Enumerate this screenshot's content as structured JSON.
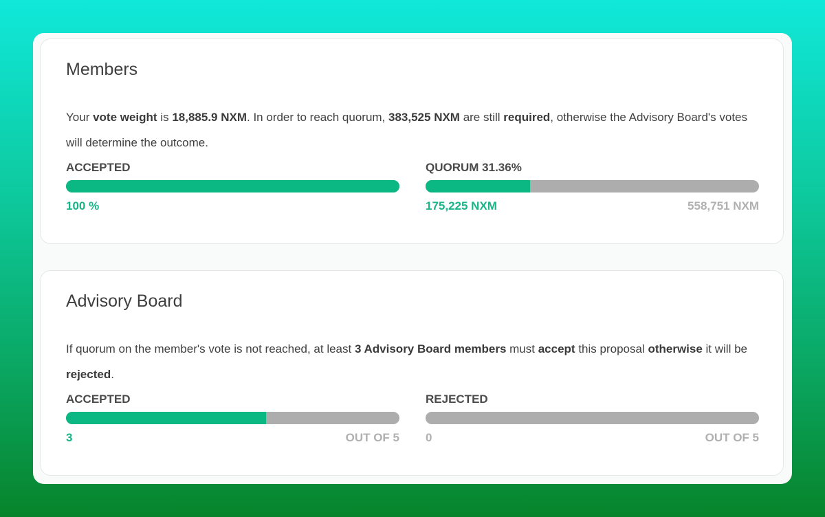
{
  "members": {
    "title": "Members",
    "desc": {
      "t1": "Your ",
      "b1": "vote weight",
      "t2": " is ",
      "b2": "18,885.9 NXM",
      "t3": ". In order to reach quorum, ",
      "b3": "383,525 NXM",
      "t4": " are still ",
      "b4": "required",
      "t5": ", otherwise the Advisory Board's votes will determine the outcome."
    },
    "accepted": {
      "label": "ACCEPTED",
      "value_text": "100 %",
      "fraction": 1.0
    },
    "quorum": {
      "label": "QUORUM 31.36%",
      "current": "175,225 NXM",
      "total": "558,751 NXM",
      "fraction": 0.3136
    }
  },
  "board": {
    "title": "Advisory Board",
    "desc": {
      "t1": "If quorum on the member's vote is not reached, at least ",
      "b1": "3 Advisory Board members",
      "t2": " must ",
      "b2": "accept",
      "t3": " this proposal ",
      "b3": "otherwise",
      "t4": " it will be ",
      "b4": "rejected",
      "t5": "."
    },
    "accepted": {
      "label": "ACCEPTED",
      "value": "3",
      "out_of": "OUT OF 5",
      "fraction": 0.6
    },
    "rejected": {
      "label": "REJECTED",
      "value": "0",
      "out_of": "OUT OF 5",
      "fraction": 0.0
    }
  },
  "colors": {
    "accent": "#0bb782",
    "track": "#adadad",
    "muted": "#b0b0b0"
  }
}
